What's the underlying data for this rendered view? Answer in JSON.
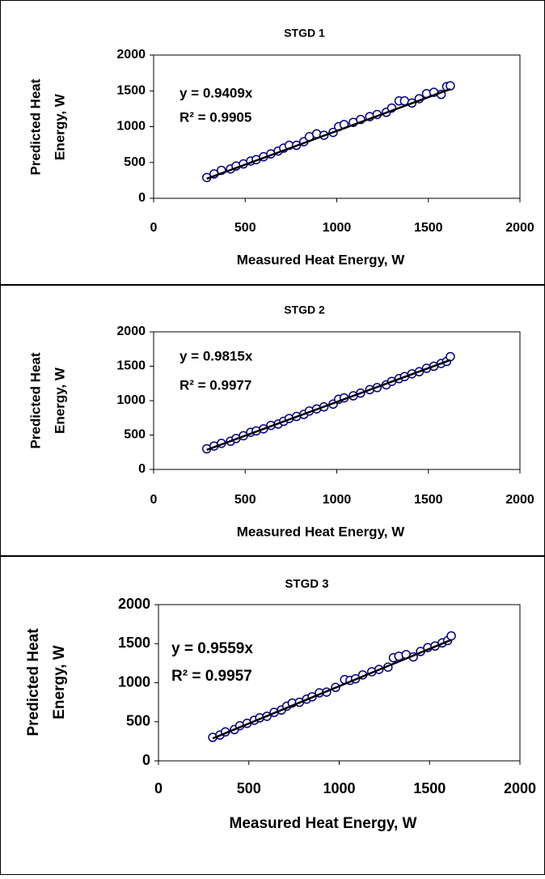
{
  "chart_data": [
    {
      "type": "scatter",
      "title": "STGD 1",
      "xlabel": "Measured Heat Energy, W",
      "ylabel": [
        "Predicted Heat",
        "Energy, W"
      ],
      "xlim": [
        0,
        2000
      ],
      "ylim": [
        0,
        2000
      ],
      "xticks": [
        0,
        500,
        1000,
        1500,
        2000
      ],
      "yticks": [
        0,
        500,
        1000,
        1500,
        2000
      ],
      "color": "#000080",
      "x": [
        290,
        330,
        370,
        420,
        450,
        490,
        530,
        560,
        600,
        640,
        680,
        710,
        740,
        780,
        820,
        850,
        890,
        930,
        980,
        1010,
        1040,
        1090,
        1130,
        1180,
        1220,
        1270,
        1300,
        1340,
        1370,
        1410,
        1450,
        1490,
        1530,
        1570,
        1600,
        1620
      ],
      "values": [
        290,
        340,
        390,
        410,
        450,
        480,
        520,
        540,
        580,
        620,
        660,
        700,
        740,
        740,
        790,
        860,
        900,
        880,
        920,
        1000,
        1030,
        1060,
        1100,
        1140,
        1170,
        1200,
        1260,
        1360,
        1360,
        1330,
        1390,
        1460,
        1480,
        1450,
        1560,
        1570
      ],
      "trendline": {
        "slope": 0.9409,
        "label": "y = 0.9409x",
        "r2_label": "R² = 0.9905",
        "color": "#000000"
      }
    },
    {
      "type": "scatter",
      "title": "STGD 2",
      "xlabel": "Measured Heat Energy, W",
      "ylabel": [
        "Predicted Heat",
        "Energy, W"
      ],
      "xlim": [
        0,
        2000
      ],
      "ylim": [
        0,
        2000
      ],
      "xticks": [
        0,
        500,
        1000,
        1500,
        2000
      ],
      "yticks": [
        0,
        500,
        1000,
        1500,
        2000
      ],
      "color": "#000080",
      "x": [
        290,
        330,
        370,
        420,
        450,
        490,
        530,
        560,
        600,
        640,
        680,
        710,
        740,
        780,
        820,
        850,
        890,
        930,
        980,
        1010,
        1040,
        1090,
        1130,
        1180,
        1220,
        1270,
        1300,
        1340,
        1370,
        1410,
        1450,
        1490,
        1530,
        1570,
        1600,
        1620
      ],
      "values": [
        300,
        340,
        380,
        410,
        450,
        490,
        540,
        560,
        590,
        640,
        660,
        700,
        740,
        770,
        800,
        850,
        880,
        910,
        950,
        1020,
        1040,
        1070,
        1110,
        1160,
        1190,
        1230,
        1280,
        1320,
        1350,
        1390,
        1420,
        1470,
        1500,
        1540,
        1570,
        1640
      ],
      "trendline": {
        "slope": 0.9815,
        "label": "y = 0.9815x",
        "r2_label": "R² = 0.9977",
        "color": "#000000"
      }
    },
    {
      "type": "scatter",
      "title": "STGD 3",
      "xlabel": "Measured Heat Energy, W",
      "ylabel": [
        "Predicted Heat",
        "Energy, W"
      ],
      "xlim": [
        0,
        2000
      ],
      "ylim": [
        0,
        2000
      ],
      "xticks": [
        0,
        500,
        1000,
        1500,
        2000
      ],
      "yticks": [
        0,
        500,
        1000,
        1500,
        2000
      ],
      "color": "#000080",
      "x": [
        300,
        340,
        370,
        420,
        450,
        490,
        530,
        560,
        600,
        640,
        680,
        710,
        740,
        780,
        820,
        850,
        890,
        930,
        980,
        1030,
        1060,
        1090,
        1130,
        1180,
        1220,
        1270,
        1300,
        1330,
        1370,
        1410,
        1450,
        1490,
        1530,
        1570,
        1600,
        1620
      ],
      "values": [
        300,
        330,
        370,
        400,
        450,
        480,
        520,
        550,
        570,
        620,
        650,
        700,
        740,
        750,
        790,
        820,
        870,
        880,
        940,
        1040,
        1030,
        1050,
        1100,
        1140,
        1170,
        1200,
        1320,
        1340,
        1360,
        1330,
        1400,
        1450,
        1470,
        1510,
        1540,
        1600
      ],
      "trendline": {
        "slope": 0.9559,
        "label": "y = 0.9559x",
        "r2_label": "R² = 0.9957",
        "color": "#000000"
      }
    }
  ]
}
